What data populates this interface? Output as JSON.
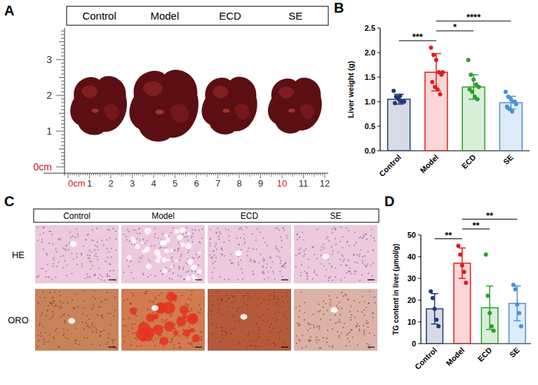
{
  "figure": {
    "panel_letters": [
      "A",
      "B",
      "C",
      "D"
    ],
    "photo": {
      "groups": [
        "Control",
        "Model",
        "ECD",
        "SE"
      ],
      "ruler_vertical": [
        "3",
        "2",
        "1",
        "0cm"
      ],
      "ruler_horizontal": [
        "0cm",
        "1",
        "2",
        "3",
        "4",
        "5",
        "6",
        "7",
        "8",
        "9",
        "10",
        "11",
        "12"
      ]
    },
    "histology": {
      "groups": [
        "Control",
        "Model",
        "ECD",
        "SE"
      ],
      "stains": [
        "HE",
        "ORO"
      ]
    }
  },
  "chart_data": [
    {
      "type": "bar",
      "ylabel": "Liver weight (g)",
      "categories": [
        "Control",
        "Model",
        "ECD",
        "SE"
      ],
      "values": [
        1.05,
        1.6,
        1.3,
        0.98
      ],
      "errors": [
        0.1,
        0.38,
        0.25,
        0.13
      ],
      "points": [
        [
          1.22,
          1.1,
          1.05,
          1.0,
          1.0,
          0.97,
          1.08,
          1.12
        ],
        [
          2.1,
          1.95,
          1.85,
          1.6,
          1.55,
          1.4,
          1.3,
          1.25,
          1.15,
          1.6
        ],
        [
          1.85,
          1.55,
          1.45,
          1.35,
          1.3,
          1.25,
          1.2,
          1.1,
          1.05
        ],
        [
          1.2,
          1.1,
          1.05,
          1.0,
          0.95,
          0.9,
          0.85,
          0.8,
          1.0
        ]
      ],
      "colors": [
        "#1f3a73",
        "#e31a1c",
        "#2ca02c",
        "#4a8fd6"
      ],
      "ylim": [
        0,
        2.5
      ],
      "yticks": [
        {
          "value": 0,
          "label": "0.0"
        },
        0.5,
        {
          "value": 1,
          "label": "1.0"
        },
        1.5,
        {
          "value": 2,
          "label": "2.0"
        },
        2.5
      ],
      "annotations": [
        {
          "from": 0,
          "to": 1,
          "text": "***"
        },
        {
          "from": 1,
          "to": 2,
          "text": "*"
        },
        {
          "from": 1,
          "to": 3,
          "text": "****"
        }
      ]
    },
    {
      "type": "bar",
      "ylabel": "TG content in liver  (μmol/g)",
      "categories": [
        "Control",
        "Model",
        "ECD",
        "SE"
      ],
      "values": [
        16,
        37,
        16.5,
        18.5
      ],
      "errors": [
        7,
        7,
        10,
        8
      ],
      "points": [
        [
          24,
          21,
          16,
          11,
          8
        ],
        [
          45,
          41,
          36,
          33,
          28
        ],
        [
          41,
          22,
          14,
          8,
          6
        ],
        [
          27,
          25,
          18,
          14,
          8
        ]
      ],
      "colors": [
        "#1f3a73",
        "#e31a1c",
        "#2ca02c",
        "#4a8fd6"
      ],
      "ylim": [
        0,
        50
      ],
      "yticks": [
        0,
        10,
        20,
        30,
        40,
        50
      ],
      "annotations": [
        {
          "from": 0,
          "to": 1,
          "text": "**"
        },
        {
          "from": 1,
          "to": 2,
          "text": "**"
        },
        {
          "from": 1,
          "to": 3,
          "text": "**"
        }
      ]
    }
  ]
}
